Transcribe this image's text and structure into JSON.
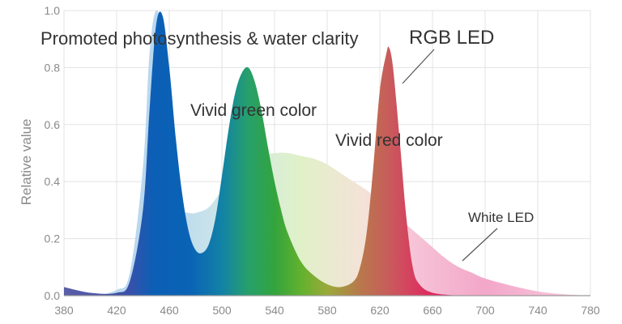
{
  "chart_data": {
    "type": "area",
    "title": "",
    "xlabel": "",
    "ylabel": "Relative value",
    "xlim": [
      380,
      780
    ],
    "ylim": [
      0,
      1.0
    ],
    "x_ticks": [
      "380",
      "420",
      "460",
      "500",
      "540",
      "580",
      "620",
      "660",
      "700",
      "740",
      "780"
    ],
    "y_ticks": [
      "0.0",
      "0.2",
      "0.4",
      "0.6",
      "0.8",
      "1.0"
    ],
    "grid": true,
    "series": [
      {
        "name": "White LED",
        "x": [
          380,
          400,
          420,
          430,
          440,
          445,
          450,
          455,
          460,
          465,
          470,
          475,
          480,
          490,
          500,
          510,
          520,
          530,
          540,
          550,
          560,
          570,
          580,
          590,
          600,
          610,
          620,
          630,
          640,
          650,
          660,
          670,
          680,
          690,
          700,
          720,
          740,
          760,
          780
        ],
        "y": [
          0.0,
          0.0,
          0.02,
          0.08,
          0.45,
          0.85,
          1.0,
          0.9,
          0.58,
          0.36,
          0.3,
          0.29,
          0.29,
          0.31,
          0.37,
          0.43,
          0.47,
          0.49,
          0.5,
          0.5,
          0.49,
          0.48,
          0.46,
          0.43,
          0.4,
          0.37,
          0.33,
          0.29,
          0.25,
          0.21,
          0.17,
          0.13,
          0.1,
          0.08,
          0.06,
          0.035,
          0.015,
          0.005,
          0.0
        ]
      },
      {
        "name": "RGB LED",
        "x": [
          380,
          400,
          420,
          430,
          440,
          445,
          450,
          455,
          460,
          465,
          470,
          475,
          480,
          485,
          490,
          495,
          500,
          505,
          510,
          515,
          520,
          525,
          530,
          535,
          540,
          545,
          550,
          560,
          570,
          580,
          590,
          600,
          605,
          610,
          615,
          620,
          625,
          627,
          630,
          635,
          640,
          645,
          650,
          660,
          680
        ],
        "y": [
          0.03,
          0.01,
          0.01,
          0.05,
          0.3,
          0.65,
          0.95,
          0.98,
          0.8,
          0.55,
          0.35,
          0.22,
          0.16,
          0.15,
          0.18,
          0.27,
          0.42,
          0.58,
          0.71,
          0.78,
          0.8,
          0.75,
          0.65,
          0.52,
          0.4,
          0.3,
          0.22,
          0.12,
          0.07,
          0.04,
          0.03,
          0.05,
          0.1,
          0.22,
          0.45,
          0.72,
          0.85,
          0.87,
          0.8,
          0.55,
          0.28,
          0.1,
          0.04,
          0.01,
          0.0
        ]
      }
    ],
    "annotations": [
      {
        "text": "Promoted photosynthesis & water clarity"
      },
      {
        "text": "RGB LED"
      },
      {
        "text": "Vivid green color"
      },
      {
        "text": "Vivid red color"
      },
      {
        "text": "White LED"
      }
    ]
  },
  "colors": {
    "white_led_fill": "#f2a6c8",
    "white_led_blue": "#b9d8ef",
    "grid": "#e3e3e3",
    "axis": "#9a9a9a",
    "blue": "#0a62b6",
    "green": "#34a23a",
    "red": "#d8335a"
  }
}
